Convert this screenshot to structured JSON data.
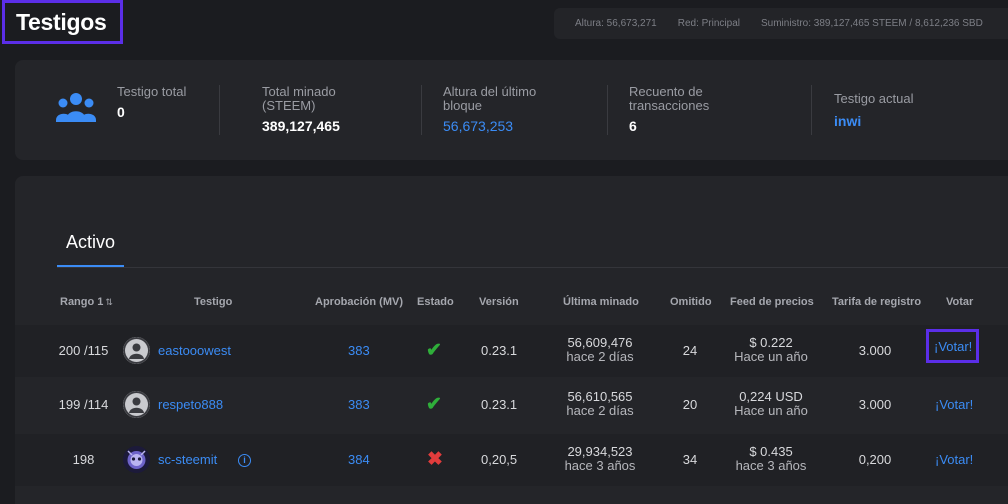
{
  "header": {
    "title": "Testigos",
    "netinfo": {
      "height": "Altura: 56,673,271",
      "network": "Red: Principal",
      "supply": "Suministro: 389,127,465 STEEM / 8,612,236 SBD"
    }
  },
  "stats": {
    "icon": "people-group-icon",
    "total_witness": {
      "label": "Testigo total",
      "value": "0"
    },
    "total_mined": {
      "label": "Total minado (STEEM)",
      "value": "389,127,465"
    },
    "last_block": {
      "label": "Altura del último bloque",
      "value": "56,673,253"
    },
    "tx_count": {
      "label": "Recuento de transacciones",
      "value": "6"
    },
    "current_witness": {
      "label": "Testigo actual",
      "value": "inwi"
    }
  },
  "tabs": {
    "active": "Activo"
  },
  "table": {
    "headers": {
      "rank": "Rango 1",
      "witness": "Testigo",
      "approval": "Aprobación (MV)",
      "status": "Estado",
      "version": "Versión",
      "last_mined": "Última minado",
      "missed": "Omitido",
      "price_feed": "Feed de precios",
      "reg_fee": "Tarifa de registro",
      "vote": "Votar"
    },
    "rows": [
      {
        "rank": "200 /115",
        "name": "eastooowest",
        "approval": "383",
        "status": "ok",
        "version": "0.23.1",
        "block": "56,609,476",
        "block_time": "hace 2 días",
        "missed": "24",
        "feed": "$ 0.222",
        "feed_time": "Hace un año",
        "fee": "3.000",
        "vote": "¡Votar!"
      },
      {
        "rank": "199 /114",
        "name": "respeto888",
        "approval": "383",
        "status": "ok",
        "version": "0.23.1",
        "block": "56,610,565",
        "block_time": "hace 2 días",
        "missed": "20",
        "feed": "0,224 USD",
        "feed_time": "Hace un año",
        "fee": "3.000",
        "vote": "¡Votar!"
      },
      {
        "rank": "198",
        "name": "sc-steemit",
        "approval": "384",
        "status": "error",
        "version": "0,20,5",
        "block": "29,934,523",
        "block_time": "hace 3 años",
        "missed": "34",
        "feed": "$ 0.435",
        "feed_time": "hace 3 años",
        "fee": "0,200",
        "vote": "¡Votar!"
      }
    ]
  },
  "colors": {
    "accent": "#3b8cf5",
    "highlight": "#5b2ee8",
    "success": "#2fae3a",
    "error": "#e23c3c"
  }
}
